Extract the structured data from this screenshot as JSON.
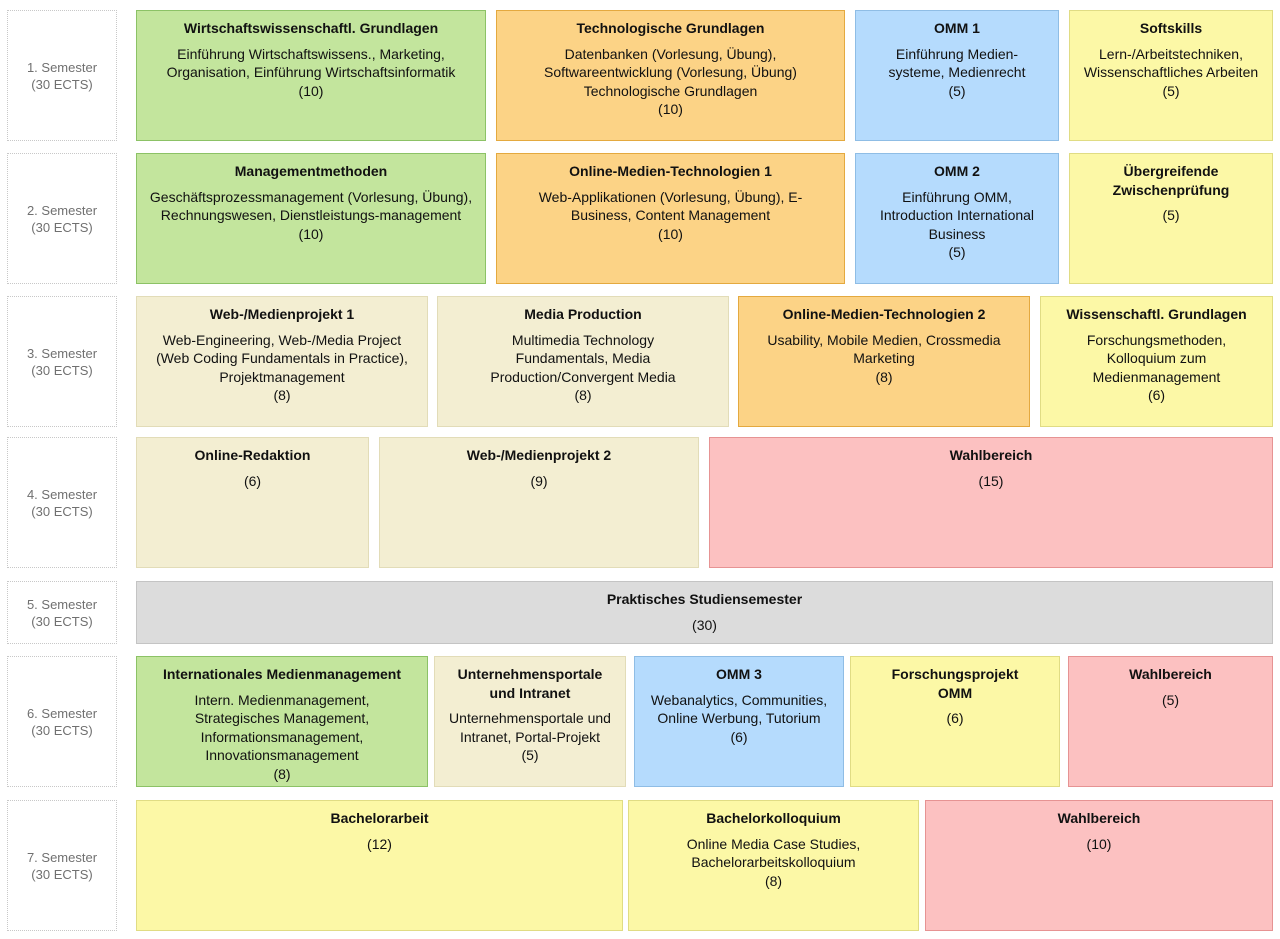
{
  "semesters": [
    {
      "name": "1. Semester",
      "ects": "(30 ECTS)"
    },
    {
      "name": "2. Semester",
      "ects": "(30 ECTS)"
    },
    {
      "name": "3. Semester",
      "ects": "(30 ECTS)"
    },
    {
      "name": "4. Semester",
      "ects": "(30 ECTS)"
    },
    {
      "name": "5. Semester",
      "ects": "(30 ECTS)"
    },
    {
      "name": "6. Semester",
      "ects": "(30 ECTS)"
    },
    {
      "name": "7. Semester",
      "ects": "(30 ECTS)"
    }
  ],
  "modules": {
    "m1_1": {
      "title": "Wirtschaftswissenschaftl. Grundlagen",
      "desc": "Einführung Wirtschaftswissens., Marketing, Organisation, Einführung Wirtschaftsinformatik",
      "ects": "(10)",
      "color": "#c3e59d"
    },
    "m1_2": {
      "title": "Technologische Grundlagen",
      "desc": "Datenbanken (Vorlesung, Übung), Softwareentwicklung (Vorlesung, Übung) Technologische Grundlagen",
      "ects": "(10)",
      "color": "#fcd386"
    },
    "m1_3": {
      "title": "OMM 1",
      "desc": "Einführung Medien-systeme, Medienrecht",
      "ects": "(5)",
      "color": "#b5dbfd"
    },
    "m1_4": {
      "title": "Softskills",
      "desc": "Lern-/Arbeitstechniken, Wissenschaftliches Arbeiten",
      "ects": "(5)",
      "color": "#fcf8a6"
    },
    "m2_1": {
      "title": "Managementmethoden",
      "desc": "Geschäftsprozessmanagement (Vorlesung, Übung), Rechnungswesen, Dienstleistungs-management",
      "ects": "(10)",
      "color": "#c3e59d"
    },
    "m2_2": {
      "title": "Online-Medien-Technologien 1",
      "desc": "Web-Applikationen (Vorlesung, Übung), E-Business, Content Management",
      "ects": "(10)",
      "color": "#fcd386"
    },
    "m2_3": {
      "title": "OMM 2",
      "desc": "Einführung OMM, Introduction International Business",
      "ects": "(5)",
      "color": "#b5dbfd"
    },
    "m2_4": {
      "title": "Übergreifende Zwischenprüfung",
      "desc": "",
      "ects": "(5)",
      "color": "#fcf8a6"
    },
    "m3_1": {
      "title": "Web-/Medienprojekt 1",
      "desc": "Web-Engineering, Web-/Media Project (Web Coding Fundamentals in Practice), Projektmanagement",
      "ects": "(8)",
      "color": "#f3eed2"
    },
    "m3_2": {
      "title": "Media Production",
      "desc": "Multimedia Technology Fundamentals, Media Production/Convergent Media",
      "ects": "(8)",
      "color": "#f3eed2"
    },
    "m3_3": {
      "title": "Online-Medien-Technologien 2",
      "desc": "Usability, Mobile Medien, Crossmedia Marketing",
      "ects": "(8)",
      "color": "#fcd386"
    },
    "m3_4": {
      "title": "Wissenschaftl. Grundlagen",
      "desc": "Forschungsmethoden, Kolloquium zum Medienmanagement",
      "ects": "(6)",
      "color": "#fcf8a6"
    },
    "m4_1": {
      "title": "Online-Redaktion",
      "desc": "",
      "ects": "(6)",
      "color": "#f3eed2"
    },
    "m4_2": {
      "title": "Web-/Medienprojekt 2",
      "desc": "",
      "ects": "(9)",
      "color": "#f3eed2"
    },
    "m4_3": {
      "title": "Wahlbereich",
      "desc": "",
      "ects": "(15)",
      "color": "#fcc1c1"
    },
    "m5_1": {
      "title": "Praktisches Studiensemester",
      "desc": "",
      "ects": "(30)",
      "color": "#dcdcdc"
    },
    "m6_1": {
      "title": "Internationales Medienmanagement",
      "desc": "Intern. Medienmanagement, Strategisches Management, Informationsmanagement, Innovationsmanagement",
      "ects": "(8)",
      "color": "#c3e59d"
    },
    "m6_2": {
      "title": "Unternehmensportale und Intranet",
      "desc": "Unternehmensportale und Intranet, Portal-Projekt",
      "ects": "(5)",
      "color": "#f3eed2"
    },
    "m6_3": {
      "title": "OMM 3",
      "desc": "Webanalytics, Communities, Online Werbung, Tutorium",
      "ects": "(6)",
      "color": "#b5dbfd"
    },
    "m6_4": {
      "title": "Forschungsprojekt OMM",
      "desc": "",
      "ects": "(6)",
      "color": "#fcf8a6"
    },
    "m6_5": {
      "title": "Wahlbereich",
      "desc": "",
      "ects": "(5)",
      "color": "#fcc1c1"
    },
    "m7_1": {
      "title": "Bachelorarbeit",
      "desc": "",
      "ects": "(12)",
      "color": "#fcf8a6"
    },
    "m7_2": {
      "title": "Bachelorkolloquium",
      "desc": "Online Media Case Studies, Bachelorarbeitskolloquium",
      "ects": "(8)",
      "color": "#fcf8a6"
    },
    "m7_3": {
      "title": "Wahlbereich",
      "desc": "",
      "ects": "(10)",
      "color": "#fcc1c1"
    }
  }
}
